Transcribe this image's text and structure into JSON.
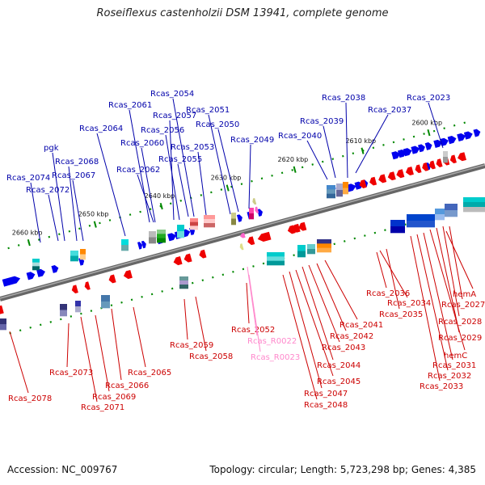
{
  "title": "Roseiflexus castenholzii DSM 13941, complete genome",
  "footer": {
    "accession": "Accession: NC_009767",
    "stats": "Topology: circular; Length: 5,723,298 bp; Genes: 4,385"
  },
  "colors": {
    "forward_gene": "#0000ee",
    "reverse_gene": "#ee0000",
    "rna": "#ff66cc",
    "backbone": "#808080",
    "forward_label": "#0000aa",
    "reverse_label": "#cc0000",
    "rna_label": "#ff88cc",
    "tick": "#008800"
  },
  "scale_ticks": [
    "2600 kbp",
    "2610 kbp",
    "2620 kbp",
    "2630 kbp",
    "2640 kbp",
    "2650 kbp",
    "2660 kbp"
  ],
  "forward_labels": [
    "Rcas_2074",
    "Rcas_2072",
    "pgk",
    "Rcas_2068",
    "Rcas_2067",
    "Rcas_2064",
    "Rcas_2061",
    "Rcas_2062",
    "Rcas_2060",
    "Rcas_2057",
    "Rcas_2056",
    "Rcas_2054",
    "Rcas_2055",
    "Rcas_2053",
    "Rcas_2051",
    "Rcas_2050",
    "Rcas_2049",
    "Rcas_2040",
    "Rcas_2039",
    "Rcas_2038",
    "Rcas_2037",
    "Rcas_2023"
  ],
  "reverse_labels": [
    "Rcas_2078",
    "Rcas_2073",
    "Rcas_2071",
    "Rcas_2069",
    "Rcas_2066",
    "Rcas_2065",
    "Rcas_2059",
    "Rcas_2058",
    "Rcas_2052",
    "Rcas_2048",
    "Rcas_2047",
    "Rcas_2045",
    "Rcas_2044",
    "Rcas_2043",
    "Rcas_2042",
    "Rcas_2041",
    "Rcas_2036",
    "Rcas_2034",
    "Rcas_2035",
    "Rcas_2033",
    "Rcas_2032",
    "Rcas_2031",
    "hemC",
    "Rcas_2029",
    "Rcas_2028",
    "Rcas_2027",
    "hemA"
  ],
  "rna_labels": [
    "Rcas_R0022",
    "Rcas_R0023"
  ]
}
